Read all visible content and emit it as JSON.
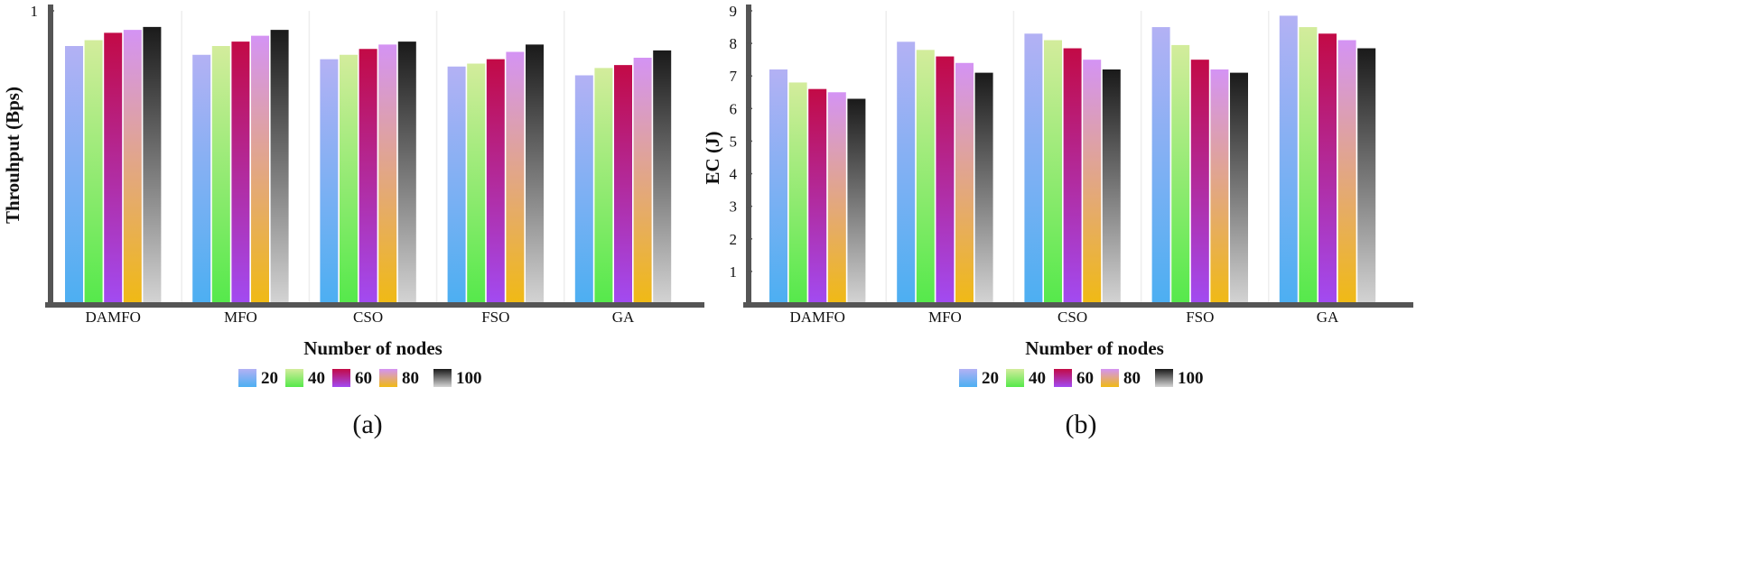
{
  "chart_data": [
    {
      "type": "bar",
      "panel": "(a)",
      "xlabel": "Number of nodes",
      "ylabel": "Throuhput (Bps)",
      "categories": [
        "DAMFO",
        "MFO",
        "CSO",
        "FSO",
        "GA"
      ],
      "ylim": [
        0,
        1
      ],
      "yticks": [
        {
          "value": 1,
          "label": "1"
        }
      ],
      "grid": true,
      "legend_position": "bottom",
      "series": [
        {
          "name": "20",
          "values": [
            0.88,
            0.85,
            0.835,
            0.81,
            0.78
          ]
        },
        {
          "name": "40",
          "values": [
            0.9,
            0.88,
            0.85,
            0.82,
            0.805
          ]
        },
        {
          "name": "60",
          "values": [
            0.925,
            0.895,
            0.87,
            0.835,
            0.815
          ]
        },
        {
          "name": "80",
          "values": [
            0.935,
            0.915,
            0.885,
            0.86,
            0.84
          ]
        },
        {
          "name": "100",
          "values": [
            0.945,
            0.935,
            0.895,
            0.885,
            0.865
          ]
        }
      ]
    },
    {
      "type": "bar",
      "panel": "(b)",
      "xlabel": "Number of nodes",
      "ylabel": "EC (J)",
      "categories": [
        "DAMFO",
        "MFO",
        "CSO",
        "FSO",
        "GA"
      ],
      "ylim": [
        0,
        9
      ],
      "yticks": [
        {
          "value": 1,
          "label": "1"
        },
        {
          "value": 2,
          "label": "2"
        },
        {
          "value": 3,
          "label": "3"
        },
        {
          "value": 4,
          "label": "4"
        },
        {
          "value": 5,
          "label": "5"
        },
        {
          "value": 6,
          "label": "6"
        },
        {
          "value": 7,
          "label": "7"
        },
        {
          "value": 8,
          "label": "8"
        },
        {
          "value": 9,
          "label": "9"
        }
      ],
      "grid": true,
      "legend_position": "bottom",
      "series": [
        {
          "name": "20",
          "values": [
            7.2,
            8.05,
            8.3,
            8.5,
            8.85
          ]
        },
        {
          "name": "40",
          "values": [
            6.8,
            7.8,
            8.1,
            7.95,
            8.5
          ]
        },
        {
          "name": "60",
          "values": [
            6.6,
            7.6,
            7.85,
            7.5,
            8.3
          ]
        },
        {
          "name": "80",
          "values": [
            6.5,
            7.4,
            7.5,
            7.2,
            8.1
          ]
        },
        {
          "name": "100",
          "values": [
            6.3,
            7.1,
            7.2,
            7.1,
            7.85
          ]
        }
      ]
    }
  ],
  "colors": {
    "series": [
      {
        "top": "#b3b1f4",
        "bottom": "#4caff2"
      },
      {
        "top": "#d3ec9c",
        "bottom": "#55e94b"
      },
      {
        "top": "#c20a46",
        "bottom": "#a24bf2"
      },
      {
        "top": "#d493f4",
        "bottom": "#f0ba14"
      },
      {
        "top": "#1a1a1a",
        "bottom": "#d4d4d4"
      }
    ],
    "axis": "#555555",
    "grid": "#eeeeee"
  }
}
